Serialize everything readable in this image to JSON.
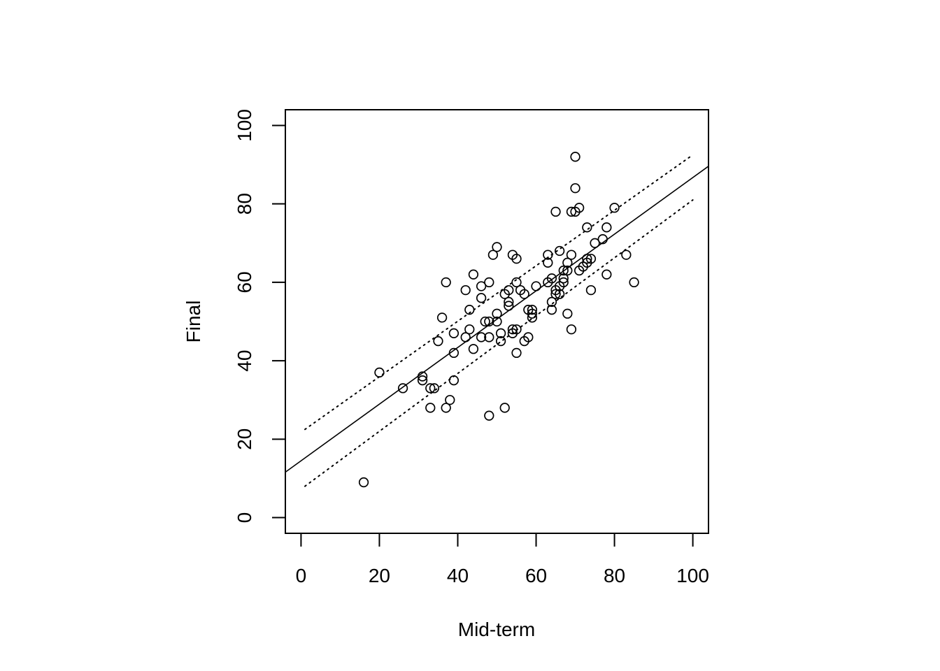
{
  "chart_data": {
    "type": "scatter",
    "xlabel": "Mid-term",
    "ylabel": "Final",
    "xlim": [
      -4,
      104
    ],
    "ylim": [
      -4,
      104
    ],
    "xticks": [
      0,
      20,
      40,
      60,
      80,
      100
    ],
    "yticks": [
      0,
      20,
      40,
      60,
      80,
      100
    ],
    "points": [
      [
        16,
        9
      ],
      [
        20,
        37
      ],
      [
        26,
        33
      ],
      [
        31,
        36
      ],
      [
        31,
        35
      ],
      [
        33,
        33
      ],
      [
        34,
        33
      ],
      [
        33,
        28
      ],
      [
        35,
        45
      ],
      [
        36,
        51
      ],
      [
        37,
        60
      ],
      [
        37,
        28
      ],
      [
        38,
        30
      ],
      [
        39,
        47
      ],
      [
        39,
        42
      ],
      [
        39,
        35
      ],
      [
        42,
        58
      ],
      [
        42,
        46
      ],
      [
        43,
        53
      ],
      [
        43,
        48
      ],
      [
        44,
        62
      ],
      [
        44,
        43
      ],
      [
        46,
        59
      ],
      [
        46,
        56
      ],
      [
        46,
        46
      ],
      [
        47,
        50
      ],
      [
        48,
        60
      ],
      [
        48,
        50
      ],
      [
        48,
        46
      ],
      [
        48,
        26
      ],
      [
        49,
        67
      ],
      [
        50,
        69
      ],
      [
        50,
        52
      ],
      [
        50,
        50
      ],
      [
        51,
        47
      ],
      [
        51,
        45
      ],
      [
        52,
        57
      ],
      [
        52,
        28
      ],
      [
        53,
        58
      ],
      [
        53,
        55
      ],
      [
        53,
        54
      ],
      [
        54,
        67
      ],
      [
        54,
        48
      ],
      [
        54,
        47
      ],
      [
        55,
        66
      ],
      [
        55,
        60
      ],
      [
        55,
        48
      ],
      [
        55,
        42
      ],
      [
        56,
        58
      ],
      [
        57,
        57
      ],
      [
        57,
        45
      ],
      [
        58,
        53
      ],
      [
        58,
        46
      ],
      [
        59,
        53
      ],
      [
        59,
        52
      ],
      [
        59,
        51
      ],
      [
        60,
        59
      ],
      [
        63,
        67
      ],
      [
        63,
        65
      ],
      [
        63,
        60
      ],
      [
        64,
        61
      ],
      [
        64,
        55
      ],
      [
        64,
        53
      ],
      [
        65,
        78
      ],
      [
        65,
        58
      ],
      [
        65,
        57
      ],
      [
        66,
        68
      ],
      [
        66,
        59
      ],
      [
        66,
        57
      ],
      [
        67,
        63
      ],
      [
        67,
        61
      ],
      [
        67,
        60
      ],
      [
        68,
        65
      ],
      [
        68,
        63
      ],
      [
        68,
        52
      ],
      [
        69,
        78
      ],
      [
        69,
        67
      ],
      [
        69,
        48
      ],
      [
        70,
        92
      ],
      [
        70,
        84
      ],
      [
        70,
        78
      ],
      [
        71,
        79
      ],
      [
        71,
        63
      ],
      [
        72,
        64
      ],
      [
        73,
        74
      ],
      [
        73,
        66
      ],
      [
        73,
        65
      ],
      [
        74,
        66
      ],
      [
        74,
        58
      ],
      [
        75,
        70
      ],
      [
        77,
        71
      ],
      [
        78,
        74
      ],
      [
        78,
        62
      ],
      [
        80,
        79
      ],
      [
        83,
        67
      ],
      [
        85,
        60
      ]
    ],
    "fit_line": {
      "x1": -4,
      "y1": 11.6,
      "x2": 104,
      "y2": 89.6,
      "style": "solid"
    },
    "upper_band": {
      "x": [
        1,
        100
      ],
      "y": [
        22.5,
        92.5
      ],
      "style": "dotted"
    },
    "lower_band": {
      "x": [
        1,
        100
      ],
      "y": [
        8,
        81
      ],
      "style": "dotted"
    },
    "grid": false,
    "colors": {
      "points": "#000000",
      "lines": "#000000",
      "background": "#ffffff"
    }
  }
}
